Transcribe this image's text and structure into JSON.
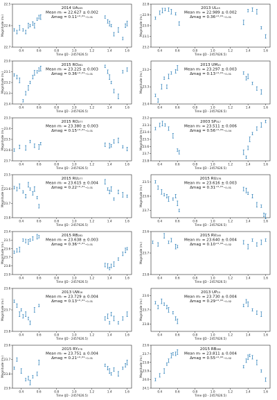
{
  "figure": {
    "xlabel": "Time (JD - 2457626.5)",
    "ylabel": "Magnitude (mᵣ)",
    "xlim": [
      0.3,
      1.65
    ],
    "xticks": [
      "0.4",
      "0.6",
      "0.8",
      "1.0",
      "1.2",
      "1.4",
      "1.6"
    ],
    "point_color": "#1f77b4"
  },
  "chart_data": [
    {
      "type": "scatter",
      "title": "2014 UA₂₂₅",
      "mean": "Mean mᵣ = 22.627 ± 0.002",
      "delta": "Δmag = 0.11⁺⁰·⁰¹₋₀.₀₁",
      "ylim": [
        22.5,
        22.7
      ],
      "yticks": [
        "22.5",
        "22.6",
        "22.7"
      ],
      "x": [
        0.32,
        0.35,
        0.38,
        0.42,
        0.45,
        0.48,
        0.5,
        0.53,
        0.55,
        0.58,
        0.6,
        0.62,
        1.35,
        1.38,
        1.4,
        1.42,
        1.45,
        1.5,
        1.55,
        1.58,
        1.6
      ],
      "y": [
        22.62,
        22.63,
        22.61,
        22.62,
        22.63,
        22.6,
        22.6,
        22.59,
        22.6,
        22.57,
        22.56,
        22.56,
        22.56,
        22.58,
        22.59,
        22.6,
        22.64,
        22.62,
        22.66,
        22.6,
        22.59
      ]
    },
    {
      "type": "scatter",
      "title": "2013 UL₁₅",
      "mean": "Mean mᵣ = 22.989 ± 0.002",
      "delta": "Δmag = 0.36⁺⁰·⁰¹₋₀.₀₁",
      "ylim": [
        22.8,
        23.2
      ],
      "yticks": [
        "22.8",
        "22.9",
        "23.0",
        "23.1",
        "23.2"
      ],
      "x": [
        0.35,
        0.4,
        0.43,
        0.46,
        0.5,
        0.53,
        0.58,
        0.62,
        1.35,
        1.4,
        1.45,
        1.5,
        1.55,
        1.6
      ],
      "y": [
        22.93,
        22.88,
        22.86,
        22.85,
        22.85,
        22.87,
        22.89,
        22.98,
        22.97,
        22.86,
        22.85,
        22.87,
        23.02,
        23.1
      ],
      "x_extra_note": "",
      "y_extra": []
    },
    {
      "type": "scatter",
      "title": "2015 RO₂₈₁",
      "mean": "Mean mᵣ = 23.225 ± 0.003",
      "delta": "Δmag = 0.36⁺⁰·⁰¹₋₀.₀₁",
      "ylim": [
        23.0,
        23.4
      ],
      "yticks": [
        "23.0",
        "23.1",
        "23.2",
        "23.3",
        "23.4"
      ],
      "x": [
        0.32,
        0.35,
        0.38,
        0.42,
        0.45,
        0.48,
        0.5,
        0.53,
        0.55,
        0.58,
        0.6,
        0.62,
        1.35,
        1.38,
        1.4,
        1.42,
        1.45,
        1.5,
        1.55,
        1.6
      ],
      "y": [
        23.13,
        23.15,
        23.18,
        23.37,
        23.3,
        23.25,
        23.2,
        23.15,
        23.11,
        23.1,
        23.08,
        23.07,
        23.05,
        23.1,
        23.15,
        23.2,
        23.28,
        23.33,
        23.1,
        23.08
      ]
    },
    {
      "type": "scatter",
      "title": "2013 UM₁₅",
      "mean": "Mean mᵣ = 23.297 ± 0.003",
      "delta": "Δmag = 0.13⁺⁰·⁰¹₋₀.₀₁",
      "ylim": [
        23.15,
        23.4
      ],
      "yticks": [
        "23.2",
        "23.3",
        "23.4"
      ],
      "x": [
        0.35,
        0.38,
        0.42,
        0.45,
        0.48,
        0.5,
        0.53,
        0.58,
        0.6,
        1.35,
        1.38,
        1.4,
        1.45,
        1.5,
        1.55
      ],
      "y": [
        23.35,
        23.38,
        23.3,
        23.25,
        23.3,
        23.24,
        23.22,
        23.21,
        23.19,
        23.22,
        23.25,
        23.24,
        23.28,
        23.31,
        23.33
      ]
    },
    {
      "type": "scatter",
      "title": "2015 RO₂₇₇",
      "mean": "Mean mᵣ = 23.380 ± 0.003",
      "delta": "Δmag = 0.15⁺⁰·⁰¹₋₀.₀₁",
      "ylim": [
        23.3,
        23.7
      ],
      "yticks": [
        "23.3",
        "23.4",
        "23.5",
        "23.6",
        "23.7"
      ],
      "x": [
        0.32,
        0.38,
        0.45,
        0.5,
        0.55,
        0.6,
        0.62,
        1.35,
        1.4,
        1.42,
        1.45,
        1.5,
        1.55,
        1.6
      ],
      "y": [
        23.6,
        23.57,
        23.58,
        23.52,
        23.56,
        23.57,
        23.54,
        23.55,
        23.56,
        23.56,
        23.52,
        23.51,
        23.57,
        23.59
      ]
    },
    {
      "type": "scatter",
      "title": "2003 SP₃₁₇",
      "mean": "Mean mᵣ = 23.511 ± 0.006",
      "delta": "Δmag = 0.56⁺⁰·⁰⁹₋₀.₀₄",
      "ylim": [
        23.2,
        23.8
      ],
      "yticks": [
        "23.2",
        "23.3",
        "23.4",
        "23.5",
        "23.6",
        "23.7",
        "23.8"
      ],
      "x": [
        0.35,
        0.4,
        0.43,
        0.46,
        0.5,
        0.55,
        0.6,
        0.62,
        1.35,
        1.38,
        1.4,
        1.42,
        1.45,
        1.5,
        1.55,
        1.6
      ],
      "y": [
        23.35,
        23.3,
        23.28,
        23.3,
        23.35,
        23.45,
        23.65,
        23.68,
        23.68,
        23.75,
        23.62,
        23.5,
        23.42,
        23.35,
        23.3,
        23.25
      ]
    },
    {
      "type": "scatter",
      "title": "2015 RU₂₇₇",
      "mean": "Mean mᵣ = 23.615 ± 0.004",
      "delta": "Δmag = 0.22⁺⁰·⁰¹₋₀.₀₁",
      "ylim": [
        23.5,
        23.8
      ],
      "yticks": [
        "23.5",
        "23.6",
        "23.7",
        "23.8"
      ],
      "x": [
        0.32,
        0.35,
        0.38,
        0.42,
        0.45,
        0.48,
        0.5,
        0.53,
        0.55,
        0.58,
        0.6,
        1.35,
        1.38,
        1.4,
        1.42,
        1.45,
        1.5,
        1.55,
        1.6
      ],
      "y": [
        23.59,
        23.6,
        23.58,
        23.62,
        23.65,
        23.57,
        23.6,
        23.63,
        23.6,
        23.66,
        23.72,
        23.55,
        23.6,
        23.62,
        23.6,
        23.67,
        23.62,
        23.64,
        23.65
      ]
    },
    {
      "type": "scatter",
      "title": "2015 RU₂₇₈",
      "mean": "Mean mᵣ = 23.616 ± 0.003",
      "delta": "Δmag = 0.31⁺⁰·⁰¹₋₀.₀₁",
      "ylim": [
        23.45,
        23.75
      ],
      "yticks": [
        "23.5",
        "23.6",
        "23.7"
      ],
      "x": [
        0.35,
        0.38,
        0.42,
        0.45,
        0.48,
        0.5,
        0.55,
        0.58,
        0.6,
        0.62,
        1.35,
        1.38,
        1.4,
        1.45,
        1.5,
        1.55,
        1.58,
        1.6
      ],
      "y": [
        23.5,
        23.54,
        23.57,
        23.59,
        23.6,
        23.62,
        23.62,
        23.6,
        23.65,
        23.7,
        23.55,
        23.56,
        23.58,
        23.6,
        23.66,
        23.67,
        23.73,
        23.74
      ]
    },
    {
      "type": "scatter",
      "title": "2015 RB₂₈₁",
      "mean": "Mean mᵣ = 23.638 ± 0.003",
      "delta": "Δmag = 0.36⁺⁰·⁰¹₋₀.₀₁",
      "ylim": [
        23.4,
        23.9
      ],
      "yticks": [
        "23.4",
        "23.5",
        "23.6",
        "23.7",
        "23.8",
        "23.9"
      ],
      "x": [
        0.32,
        0.35,
        0.38,
        0.42,
        0.45,
        0.48,
        0.5,
        0.53,
        0.58,
        0.6,
        1.35,
        1.38,
        1.4,
        1.42,
        1.45,
        1.5,
        1.55,
        1.58,
        1.6
      ],
      "y": [
        23.64,
        23.62,
        23.61,
        23.5,
        23.51,
        23.52,
        23.5,
        23.48,
        23.46,
        23.46,
        23.79,
        23.8,
        23.83,
        23.8,
        23.78,
        23.72,
        23.66,
        23.62,
        23.6
      ]
    },
    {
      "type": "scatter",
      "title": "2015 RV₂₄₅",
      "mean": "Mean mᵣ = 23.640 ± 0.004",
      "delta": "Δmag = 0.10⁺⁰·⁰²₋₀.₀₂",
      "ylim": [
        23.6,
        23.8
      ],
      "yticks": [
        "23.6",
        "23.7",
        "23.8"
      ],
      "x": [
        0.32,
        0.38,
        0.45,
        0.5,
        0.53,
        0.58,
        0.6,
        1.35,
        1.4,
        1.45,
        1.5,
        1.55,
        1.6
      ],
      "y": [
        23.65,
        23.66,
        23.62,
        23.65,
        23.64,
        23.67,
        23.67,
        23.65,
        23.67,
        23.64,
        23.66,
        23.65,
        23.64
      ]
    },
    {
      "type": "scatter",
      "title": "2013 UW₁₆",
      "mean": "Mean mᵣ = 23.729 ± 0.004",
      "delta": "Δmag = 0.13⁺⁰·⁰¹₋₀.₀₁",
      "ylim": [
        23.6,
        23.8
      ],
      "yticks": [
        "23.6",
        "23.7",
        "23.8"
      ],
      "x": [
        0.32,
        0.35,
        0.38,
        0.4,
        0.42,
        0.45,
        0.48,
        0.5,
        0.55,
        0.6,
        1.35,
        1.38,
        1.4,
        1.42,
        1.45,
        1.5,
        1.55,
        1.6
      ],
      "y": [
        23.66,
        23.68,
        23.72,
        23.7,
        23.73,
        23.72,
        23.74,
        23.76,
        23.7,
        23.68,
        23.74,
        23.73,
        23.76,
        23.72,
        23.74,
        23.76,
        23.74,
        23.72
      ]
    },
    {
      "type": "scatter",
      "title": "2013 UP₁₅",
      "mean": "Mean mᵣ = 23.730 ± 0.004",
      "delta": "Δmag = 0.29⁺⁰·⁰²₋₀.₀₂",
      "ylim": [
        23.55,
        23.85
      ],
      "yticks": [
        "23.6",
        "23.7",
        "23.8"
      ],
      "x": [
        0.35,
        0.38,
        0.42,
        0.45,
        0.48,
        0.5,
        0.55,
        0.58,
        0.6,
        1.35,
        1.38,
        1.4,
        1.45,
        1.5,
        1.55
      ],
      "y": [
        23.65,
        23.68,
        23.64,
        23.66,
        23.68,
        23.7,
        23.72,
        23.76,
        23.78,
        23.67,
        23.64,
        23.66,
        23.7,
        23.72,
        23.73
      ]
    },
    {
      "type": "scatter",
      "title": "2015 RY₂₇₈",
      "mean": "Mean mᵣ = 23.751 ± 0.004",
      "delta": "Δmag = 0.21⁺⁰·⁰¹₋₀.₀₁",
      "ylim": [
        23.6,
        23.9
      ],
      "yticks": [
        "23.6",
        "23.7",
        "23.8",
        "23.9"
      ],
      "x": [
        0.32,
        0.35,
        0.4,
        0.45,
        0.48,
        0.5,
        0.53,
        0.58,
        0.6,
        1.35,
        1.38,
        1.4,
        1.42,
        1.45,
        1.5,
        1.55,
        1.58,
        1.6
      ],
      "y": [
        23.76,
        23.7,
        23.78,
        23.84,
        23.83,
        23.86,
        23.82,
        23.8,
        23.72,
        23.74,
        23.76,
        23.78,
        23.8,
        23.77,
        23.8,
        23.76,
        23.74,
        23.72
      ]
    },
    {
      "type": "scatter",
      "title": "2015 RB₂₈₀",
      "mean": "Mean mᵣ = 23.811 ± 0.004",
      "delta": "Δmag = 0.55⁺⁰·⁰²₋₀.₀₂",
      "ylim": [
        23.6,
        24.1
      ],
      "yticks": [
        "23.6",
        "23.7",
        "23.8",
        "23.9",
        "24.0",
        "24.1"
      ],
      "x": [
        0.35,
        0.4,
        0.45,
        0.48,
        0.5,
        0.53,
        0.55,
        0.58,
        0.6,
        1.35,
        1.38,
        1.4,
        1.42,
        1.45,
        1.5,
        1.55,
        1.6
      ],
      "y": [
        24.0,
        23.95,
        23.9,
        23.82,
        23.78,
        23.72,
        23.7,
        23.7,
        23.68,
        23.85,
        23.78,
        23.74,
        23.72,
        23.74,
        23.8,
        23.9,
        24.0
      ]
    }
  ]
}
